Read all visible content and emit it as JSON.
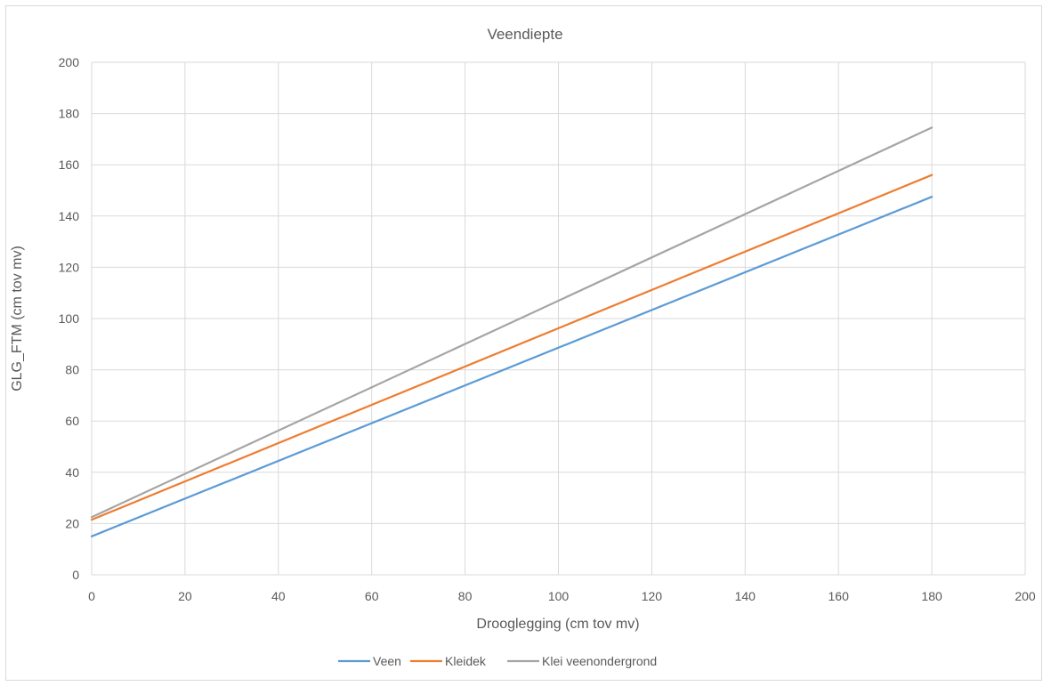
{
  "chart_data": {
    "type": "line",
    "title": "Veendiepte",
    "xlabel": "Drooglegging  (cm tov mv)",
    "ylabel": "GLG_FTM  (cm tov mv)",
    "xlim": [
      0,
      200
    ],
    "ylim": [
      0,
      200
    ],
    "xticks": [
      "0",
      "20",
      "40",
      "60",
      "80",
      "100",
      "120",
      "140",
      "160",
      "180",
      "200"
    ],
    "yticks": [
      "0",
      "20",
      "40",
      "60",
      "80",
      "100",
      "120",
      "140",
      "160",
      "180",
      "200"
    ],
    "grid": true,
    "legend_position": "bottom",
    "series": [
      {
        "name": "Veen",
        "color": "#5b9bd5",
        "x": [
          0,
          180
        ],
        "y": [
          15,
          147.5
        ]
      },
      {
        "name": "Kleidek",
        "color": "#ed7d31",
        "x": [
          0,
          180
        ],
        "y": [
          21.5,
          156
        ]
      },
      {
        "name": "Klei veenondergrond",
        "color": "#a5a5a5",
        "x": [
          0,
          180
        ],
        "y": [
          22.5,
          174.5
        ]
      }
    ]
  }
}
